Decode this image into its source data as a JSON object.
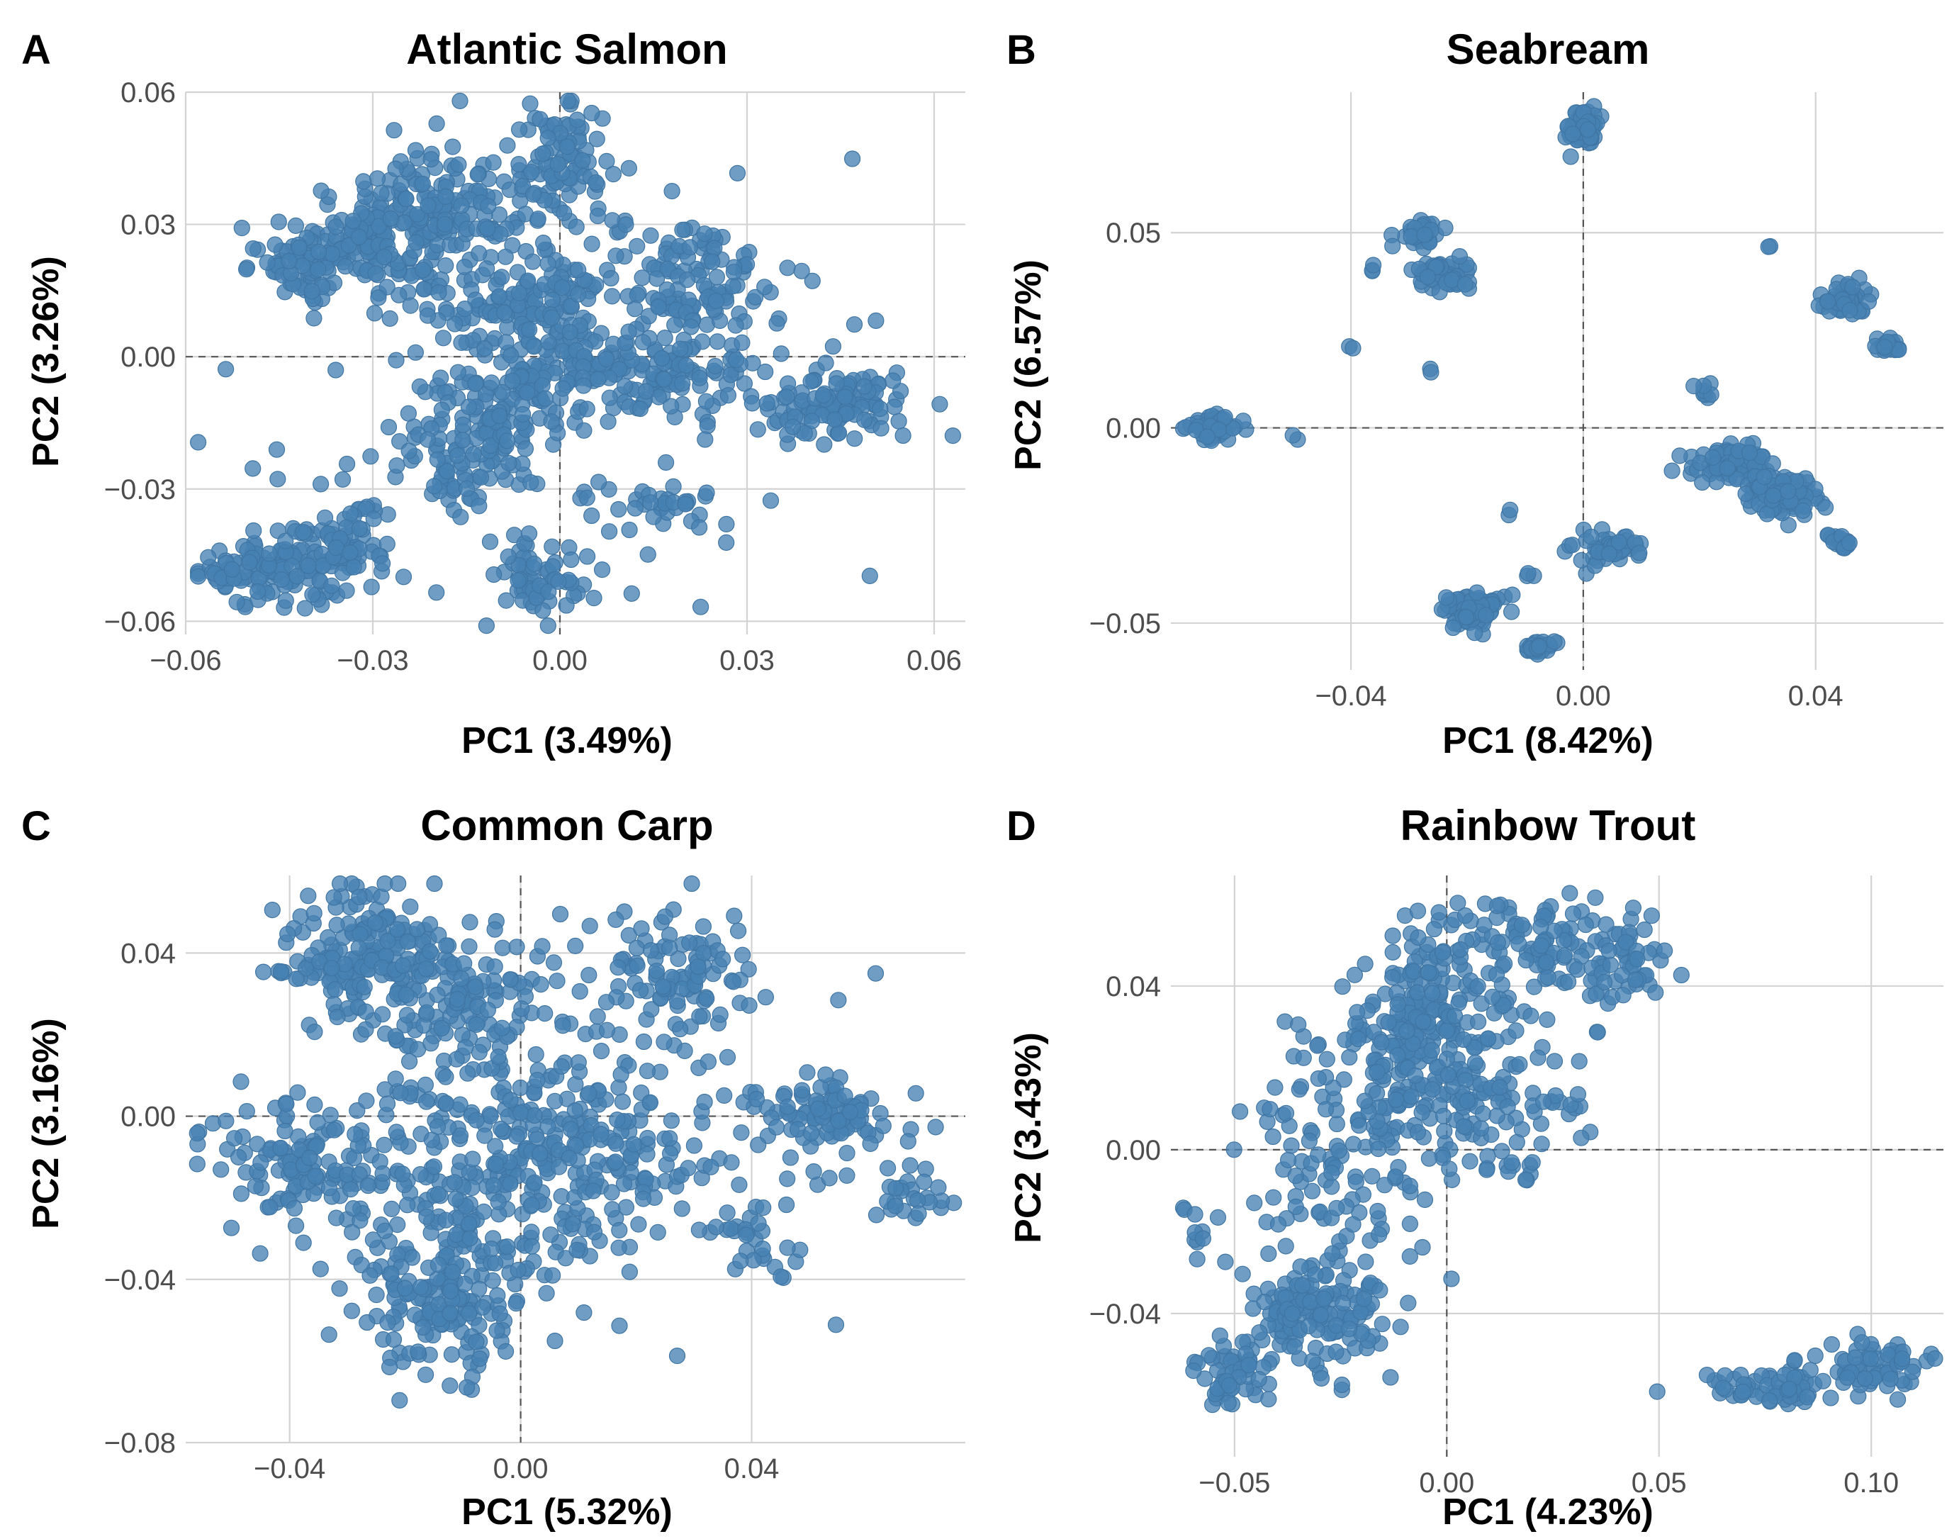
{
  "colors": {
    "point": "#4682b4",
    "point_edge": "#3f75a3",
    "grid": "#d3d3d3",
    "zero_line": "#555555"
  },
  "chart_data": [
    {
      "type": "scatter",
      "panel": "A",
      "title": "Atlantic Salmon",
      "xlabel": "PC1 (3.49%)",
      "ylabel": "PC2 (3.26%)",
      "xlim": [
        -0.06,
        0.065
      ],
      "ylim": [
        -0.063,
        0.06
      ],
      "xticks": [
        -0.06,
        -0.03,
        0.0,
        0.03,
        0.06
      ],
      "xtick_labels": [
        "−0.06",
        "−0.03",
        "0.00",
        "0.03",
        "0.06"
      ],
      "yticks": [
        -0.06,
        -0.03,
        0.0,
        0.03,
        0.06
      ],
      "ytick_labels": [
        "−0.06",
        "−0.03",
        "0.00",
        "0.03",
        "0.06"
      ],
      "grid": true,
      "reference_lines": {
        "x": 0,
        "y": 0,
        "style": "dashed"
      },
      "n_points_est": 1600,
      "clusters": [
        {
          "cx": -0.03,
          "cy": 0.027,
          "sx": 0.006,
          "sy": 0.006,
          "n": 160
        },
        {
          "cx": -0.04,
          "cy": 0.02,
          "sx": 0.005,
          "sy": 0.003,
          "n": 60
        },
        {
          "cx": -0.017,
          "cy": 0.035,
          "sx": 0.005,
          "sy": 0.006,
          "n": 110
        },
        {
          "cx": 0.0,
          "cy": 0.043,
          "sx": 0.004,
          "sy": 0.007,
          "n": 90
        },
        {
          "cx": -0.005,
          "cy": 0.012,
          "sx": 0.008,
          "sy": 0.008,
          "n": 170
        },
        {
          "cx": 0.022,
          "cy": 0.018,
          "sx": 0.007,
          "sy": 0.007,
          "n": 110
        },
        {
          "cx": 0.012,
          "cy": -0.005,
          "sx": 0.01,
          "sy": 0.005,
          "n": 170
        },
        {
          "cx": 0.045,
          "cy": -0.011,
          "sx": 0.006,
          "sy": 0.004,
          "n": 110
        },
        {
          "cx": -0.016,
          "cy": -0.02,
          "sx": 0.006,
          "sy": 0.008,
          "n": 110
        },
        {
          "cx": -0.003,
          "cy": -0.05,
          "sx": 0.004,
          "sy": 0.005,
          "n": 60
        },
        {
          "cx": -0.045,
          "cy": -0.048,
          "sx": 0.007,
          "sy": 0.004,
          "n": 130
        },
        {
          "cx": -0.034,
          "cy": -0.042,
          "sx": 0.004,
          "sy": 0.004,
          "n": 60
        },
        {
          "cx": 0.015,
          "cy": -0.033,
          "sx": 0.005,
          "sy": 0.003,
          "n": 35
        },
        {
          "cx": -0.008,
          "cy": -0.012,
          "sx": 0.004,
          "sy": 0.005,
          "n": 50
        },
        {
          "cx": 0.0,
          "cy": 0.0,
          "sx": 0.03,
          "sy": 0.025,
          "n": 80
        }
      ]
    },
    {
      "type": "scatter",
      "panel": "B",
      "title": "Seabream",
      "xlabel": "PC1 (8.42%)",
      "ylabel": "PC2 (6.57%)",
      "xlim": [
        -0.071,
        0.062
      ],
      "ylim": [
        -0.062,
        0.086
      ],
      "xticks": [
        -0.04,
        0.0,
        0.04
      ],
      "xtick_labels": [
        "−0.04",
        "0.00",
        "0.04"
      ],
      "yticks": [
        -0.05,
        0.0,
        0.05
      ],
      "ytick_labels": [
        "−0.05",
        "0.00",
        "0.05"
      ],
      "grid": true,
      "reference_lines": {
        "x": 0,
        "y": 0,
        "style": "dashed"
      },
      "n_points_est": 900,
      "clusters": [
        {
          "cx": 0.0,
          "cy": 0.077,
          "sx": 0.0012,
          "sy": 0.0025,
          "n": 70
        },
        {
          "cx": -0.028,
          "cy": 0.05,
          "sx": 0.0015,
          "sy": 0.0015,
          "n": 40
        },
        {
          "cx": -0.024,
          "cy": 0.039,
          "sx": 0.0025,
          "sy": 0.002,
          "n": 60
        },
        {
          "cx": 0.045,
          "cy": 0.033,
          "sx": 0.002,
          "sy": 0.002,
          "n": 60
        },
        {
          "cx": 0.052,
          "cy": 0.021,
          "sx": 0.0015,
          "sy": 0.0012,
          "n": 25
        },
        {
          "cx": -0.064,
          "cy": 0.0,
          "sx": 0.0022,
          "sy": 0.0018,
          "n": 55
        },
        {
          "cx": 0.026,
          "cy": -0.009,
          "sx": 0.0035,
          "sy": 0.002,
          "n": 90
        },
        {
          "cx": 0.034,
          "cy": -0.017,
          "sx": 0.003,
          "sy": 0.0025,
          "n": 90
        },
        {
          "cx": 0.044,
          "cy": -0.029,
          "sx": 0.0012,
          "sy": 0.001,
          "n": 25
        },
        {
          "cx": 0.004,
          "cy": -0.031,
          "sx": 0.003,
          "sy": 0.002,
          "n": 50
        },
        {
          "cx": -0.019,
          "cy": -0.047,
          "sx": 0.0025,
          "sy": 0.002,
          "n": 90
        },
        {
          "cx": -0.008,
          "cy": -0.056,
          "sx": 0.0012,
          "sy": 0.001,
          "n": 30
        },
        {
          "cx": 0.021,
          "cy": 0.01,
          "sx": 0.0008,
          "sy": 0.0015,
          "n": 8
        },
        {
          "cx": -0.036,
          "cy": 0.041,
          "sx": 0.0005,
          "sy": 0.0005,
          "n": 3
        },
        {
          "cx": -0.04,
          "cy": 0.02,
          "sx": 0.0005,
          "sy": 0.0005,
          "n": 2
        },
        {
          "cx": -0.026,
          "cy": 0.015,
          "sx": 0.0005,
          "sy": 0.0005,
          "n": 2
        },
        {
          "cx": -0.05,
          "cy": -0.002,
          "sx": 0.0005,
          "sy": 0.0005,
          "n": 2
        },
        {
          "cx": 0.032,
          "cy": 0.046,
          "sx": 0.0005,
          "sy": 0.0005,
          "n": 2
        },
        {
          "cx": -0.013,
          "cy": -0.022,
          "sx": 0.0005,
          "sy": 0.0005,
          "n": 2
        },
        {
          "cx": -0.009,
          "cy": -0.038,
          "sx": 0.0008,
          "sy": 0.0005,
          "n": 3
        }
      ]
    },
    {
      "type": "scatter",
      "panel": "C",
      "title": "Common Carp",
      "xlabel": "PC1 (5.32%)",
      "ylabel": "PC2 (3.16%)",
      "xlim": [
        -0.058,
        0.077
      ],
      "ylim": [
        -0.08,
        0.059
      ],
      "xticks": [
        -0.04,
        0.0,
        0.04
      ],
      "xtick_labels": [
        "−0.04",
        "0.00",
        "0.04"
      ],
      "yticks": [
        -0.08,
        -0.04,
        0.0,
        0.04
      ],
      "ytick_labels": [
        "−0.08",
        "−0.04",
        "0.00",
        "0.04"
      ],
      "grid": true,
      "reference_lines": {
        "x": 0,
        "y": 0,
        "style": "dashed"
      },
      "n_points_est": 1300,
      "clusters": [
        {
          "cx": -0.028,
          "cy": 0.04,
          "sx": 0.007,
          "sy": 0.008,
          "n": 150
        },
        {
          "cx": -0.012,
          "cy": 0.028,
          "sx": 0.009,
          "sy": 0.01,
          "n": 160
        },
        {
          "cx": -0.015,
          "cy": -0.045,
          "sx": 0.007,
          "sy": 0.01,
          "n": 160
        },
        {
          "cx": -0.038,
          "cy": -0.012,
          "sx": 0.008,
          "sy": 0.008,
          "n": 120
        },
        {
          "cx": 0.025,
          "cy": 0.035,
          "sx": 0.007,
          "sy": 0.007,
          "n": 90
        },
        {
          "cx": 0.055,
          "cy": 0.0,
          "sx": 0.006,
          "sy": 0.004,
          "n": 80
        },
        {
          "cx": 0.068,
          "cy": -0.02,
          "sx": 0.003,
          "sy": 0.003,
          "n": 25
        },
        {
          "cx": 0.01,
          "cy": -0.005,
          "sx": 0.015,
          "sy": 0.012,
          "n": 170
        },
        {
          "cx": -0.005,
          "cy": -0.02,
          "sx": 0.01,
          "sy": 0.01,
          "n": 120
        },
        {
          "cx": 0.04,
          "cy": -0.03,
          "sx": 0.004,
          "sy": 0.006,
          "n": 30
        },
        {
          "cx": 0.01,
          "cy": 0.0,
          "sx": 0.025,
          "sy": 0.025,
          "n": 150
        },
        {
          "cx": -0.055,
          "cy": -0.004,
          "sx": 0.001,
          "sy": 0.001,
          "n": 2
        }
      ]
    },
    {
      "type": "scatter",
      "panel": "D",
      "title": "Rainbow Trout",
      "xlabel": "PC1 (4.23%)",
      "ylabel": "PC2 (3.43%)",
      "xlim": [
        -0.065,
        0.117
      ],
      "ylim": [
        -0.075,
        0.067
      ],
      "xticks": [
        -0.05,
        0.0,
        0.05,
        0.1
      ],
      "xtick_labels": [
        "−0.05",
        "0.00",
        "0.05",
        "0.10"
      ],
      "yticks": [
        -0.04,
        0.0,
        0.04
      ],
      "ytick_labels": [
        "−0.04",
        "0.00",
        "0.04"
      ],
      "grid": true,
      "reference_lines": {
        "x": 0,
        "y": 0,
        "style": "dashed"
      },
      "n_points_est": 1000,
      "clusters": [
        {
          "cx": -0.006,
          "cy": 0.028,
          "sx": 0.008,
          "sy": 0.012,
          "n": 220
        },
        {
          "cx": -0.03,
          "cy": -0.04,
          "sx": 0.009,
          "sy": 0.008,
          "n": 150
        },
        {
          "cx": -0.05,
          "cy": -0.055,
          "sx": 0.004,
          "sy": 0.004,
          "n": 50
        },
        {
          "cx": 0.02,
          "cy": 0.05,
          "sx": 0.012,
          "sy": 0.006,
          "n": 110
        },
        {
          "cx": 0.01,
          "cy": 0.01,
          "sx": 0.012,
          "sy": 0.012,
          "n": 110
        },
        {
          "cx": 0.075,
          "cy": -0.058,
          "sx": 0.008,
          "sy": 0.003,
          "n": 60
        },
        {
          "cx": 0.1,
          "cy": -0.053,
          "sx": 0.007,
          "sy": 0.003,
          "n": 60
        },
        {
          "cx": -0.025,
          "cy": 0.0,
          "sx": 0.012,
          "sy": 0.015,
          "n": 120
        },
        {
          "cx": 0.04,
          "cy": 0.045,
          "sx": 0.006,
          "sy": 0.006,
          "n": 40
        },
        {
          "cx": -0.06,
          "cy": -0.02,
          "sx": 0.003,
          "sy": 0.003,
          "n": 10
        }
      ]
    }
  ]
}
